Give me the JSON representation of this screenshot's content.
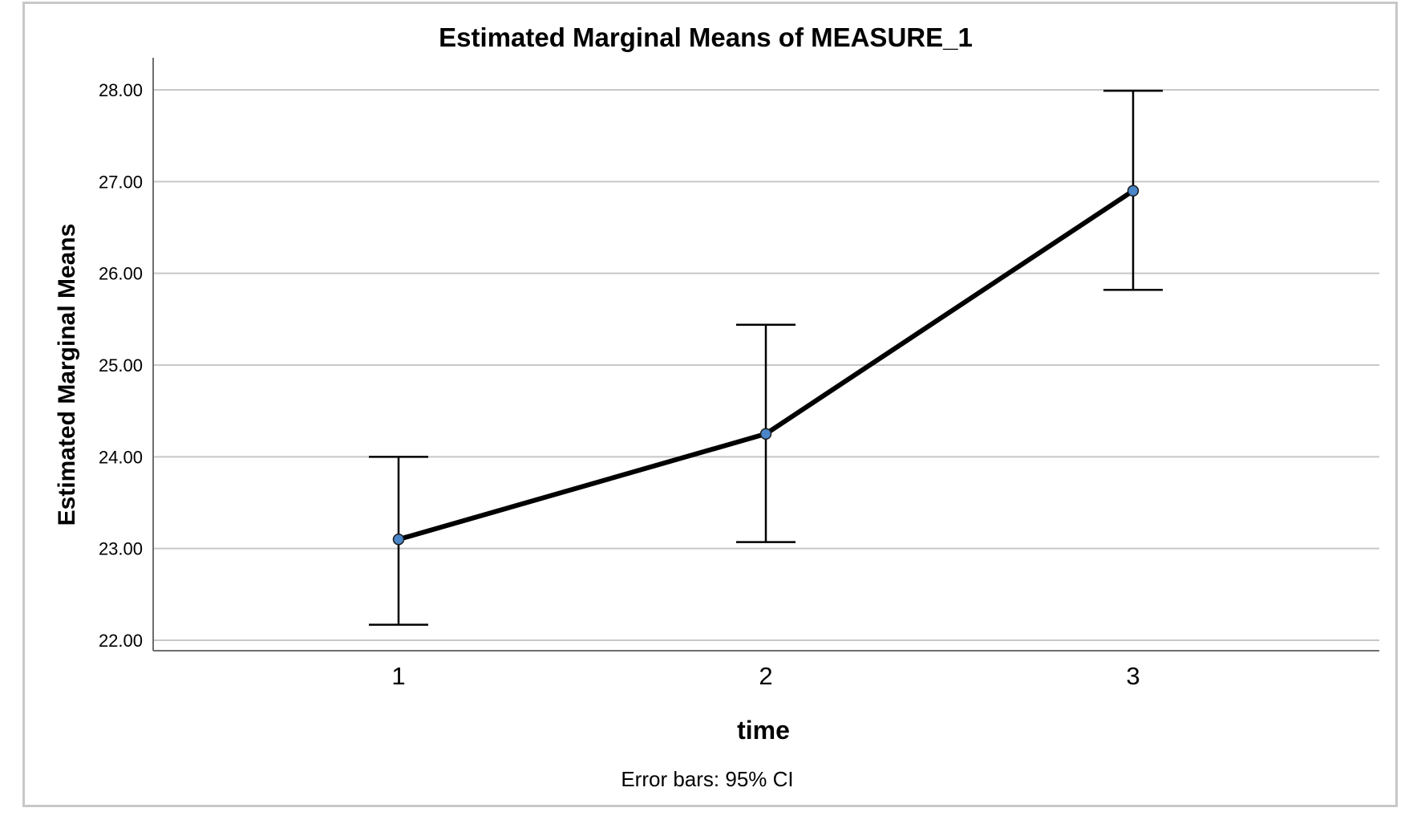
{
  "chart_data": {
    "type": "line",
    "title": "Estimated Marginal Means of MEASURE_1",
    "xlabel": "time",
    "ylabel": "Estimated Marginal Means",
    "categories": [
      "1",
      "2",
      "3"
    ],
    "values": [
      23.1,
      24.25,
      26.9
    ],
    "error_bars": {
      "label": "Error bars: 95% CI",
      "lower": [
        22.17,
        23.07,
        25.82
      ],
      "upper": [
        24.0,
        25.44,
        27.99
      ]
    },
    "ylim": [
      22.0,
      28.0
    ],
    "yticks": [
      "22.00",
      "23.00",
      "24.00",
      "25.00",
      "26.00",
      "27.00",
      "28.00"
    ],
    "grid": true,
    "legend": "none",
    "colors": {
      "line": "#000000",
      "marker": "#4a86c8",
      "grid": "#c8c8c8",
      "axis": "#6e6e6e",
      "frame": "#c8c8c8"
    }
  }
}
